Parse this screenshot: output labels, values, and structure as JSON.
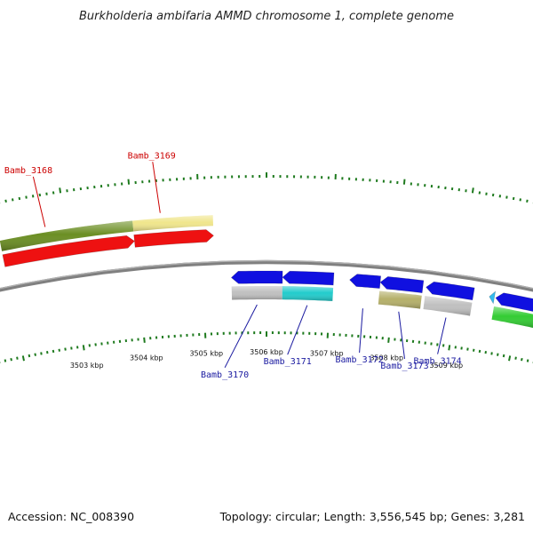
{
  "header": {
    "title": "Burkholderia ambifaria AMMD chromosome 1, complete genome"
  },
  "footer": {
    "accession": "Accession: NC_008390",
    "summary": "Topology: circular; Length: 3,556,545 bp; Genes: 3,281"
  },
  "scale": {
    "unit": "kbp",
    "tick_labels": [
      {
        "kbp": 3503,
        "text": "3503 kbp"
      },
      {
        "kbp": 3504,
        "text": "3504 kbp"
      },
      {
        "kbp": 3505,
        "text": "3505 kbp"
      },
      {
        "kbp": 3506,
        "text": "3506 kbp"
      },
      {
        "kbp": 3507,
        "text": "3507 kbp"
      },
      {
        "kbp": 3508,
        "text": "3508 kbp"
      },
      {
        "kbp": 3509,
        "text": "3509 kbp"
      }
    ]
  },
  "colors": {
    "backbone": "#808080",
    "tick": "#1e7a1e",
    "label_forward": "#cc0000",
    "label_reverse": "#1a1aa0",
    "gene_forward": "#ee1111",
    "gene_reverse": "#1010e0",
    "cog_olive": "#6b8e23",
    "cog_khaki": "#f0e68c",
    "cog_gray": "#c0c0c0",
    "cog_cyan": "#22cccc",
    "cog_darkkhaki": "#b5b06a",
    "cog_green": "#33cc33",
    "cog_skyblue": "#33bbee"
  },
  "genes": [
    {
      "name": "Bamb_3168",
      "strand": "+",
      "start_kbp": 3502.0,
      "end_kbp": 3504.0,
      "gene_color": "gene_forward",
      "cog_color": "cog_olive"
    },
    {
      "name": "Bamb_3169",
      "strand": "+",
      "start_kbp": 3504.0,
      "end_kbp": 3505.2,
      "gene_color": "gene_forward",
      "cog_color": "cog_khaki"
    },
    {
      "name": "Bamb_3170",
      "strand": "-",
      "start_kbp": 3505.45,
      "end_kbp": 3506.25,
      "gene_color": "gene_reverse",
      "cog_color": "cog_gray"
    },
    {
      "name": "Bamb_3171",
      "strand": "-",
      "start_kbp": 3506.25,
      "end_kbp": 3507.05,
      "gene_color": "gene_reverse",
      "cog_color": "cog_cyan"
    },
    {
      "name": "Bamb_3172",
      "strand": "-",
      "start_kbp": 3507.3,
      "end_kbp": 3507.78,
      "gene_color": "gene_reverse",
      "cog_color": ""
    },
    {
      "name": "Bamb_3173",
      "strand": "-",
      "start_kbp": 3507.78,
      "end_kbp": 3508.45,
      "gene_color": "gene_reverse",
      "cog_color": "cog_darkkhaki"
    },
    {
      "name": "Bamb_3174",
      "strand": "-",
      "start_kbp": 3508.5,
      "end_kbp": 3509.25,
      "gene_color": "gene_reverse",
      "cog_color": "cog_gray"
    },
    {
      "name": "",
      "strand": "-",
      "start_kbp": 3509.5,
      "end_kbp": 3509.58,
      "gene_color": "cog_skyblue",
      "cog_color": ""
    },
    {
      "name": "",
      "strand": "-",
      "start_kbp": 3509.6,
      "end_kbp": 3510.3,
      "gene_color": "gene_reverse",
      "cog_color": "cog_green"
    }
  ]
}
